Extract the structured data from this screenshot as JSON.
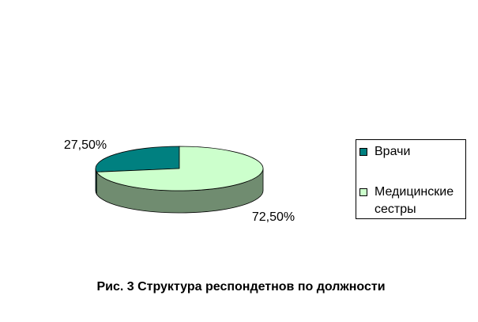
{
  "chart_data": {
    "type": "pie",
    "title": "Рис. 3 Структура респондетнов по должности",
    "categories": [
      "Врачи",
      "Медицинские сестры"
    ],
    "values": [
      27.5,
      72.5
    ],
    "value_labels": [
      "27,50%",
      "72,50%"
    ],
    "colors": [
      "#008080",
      "#ccffcc"
    ],
    "legend": "right"
  }
}
